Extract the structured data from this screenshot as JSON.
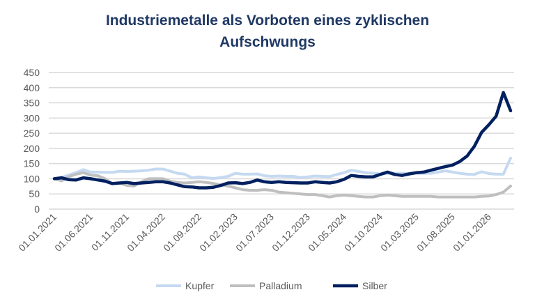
{
  "chart_data": {
    "type": "line",
    "title_line1": "Industriemetalle als Vorboten eines zyklischen",
    "title_line2": "Aufschwungs",
    "xlabel": "",
    "ylabel": "",
    "ylim": [
      0,
      450
    ],
    "yticks": [
      0,
      50,
      100,
      150,
      200,
      250,
      300,
      350,
      400,
      450
    ],
    "grid": true,
    "legend_position": "bottom",
    "x_start": "01.01.2021",
    "x_frequency": "monthly",
    "xtick_labels": [
      "01.01.2021",
      "01.06.2021",
      "01.11.2021",
      "01.04.2022",
      "01.09.2022",
      "01.02.2023",
      "01.07.2023",
      "01.12.2023",
      "01.05.2024",
      "01.10.2024",
      "01.03.2025",
      "01.08.2025",
      "01.01.2026"
    ],
    "series": [
      {
        "name": "Kupfer",
        "color": "#c5d9f1",
        "values": [
          100,
          104,
          112,
          120,
          130,
          122,
          122,
          121,
          121,
          125,
          124,
          125,
          126,
          128,
          132,
          132,
          125,
          118,
          115,
          103,
          106,
          103,
          101,
          104,
          108,
          118,
          115,
          115,
          116,
          110,
          108,
          109,
          108,
          108,
          104,
          106,
          109,
          108,
          107,
          114,
          120,
          128,
          124,
          120,
          118,
          116,
          118,
          118,
          118,
          118,
          118,
          118,
          118,
          122,
          126,
          122,
          118,
          115,
          114,
          123,
          117,
          115,
          115,
          168
        ]
      },
      {
        "name": "Palladium",
        "color": "#bfbfbf",
        "values": [
          100,
          93,
          107,
          115,
          120,
          112,
          110,
          100,
          84,
          86,
          78,
          76,
          90,
          100,
          100,
          100,
          92,
          88,
          86,
          88,
          90,
          88,
          84,
          80,
          76,
          70,
          64,
          62,
          62,
          64,
          62,
          56,
          54,
          52,
          50,
          48,
          48,
          44,
          40,
          44,
          46,
          44,
          42,
          40,
          40,
          44,
          46,
          44,
          42,
          42,
          42,
          42,
          42,
          40,
          40,
          40,
          40,
          40,
          40,
          42,
          43,
          48,
          56,
          76
        ]
      },
      {
        "name": "Silber",
        "color": "#002060",
        "values": [
          100,
          103,
          97,
          96,
          103,
          100,
          96,
          92,
          84,
          86,
          88,
          84,
          86,
          88,
          90,
          90,
          86,
          80,
          74,
          73,
          70,
          70,
          72,
          78,
          86,
          87,
          84,
          88,
          96,
          90,
          88,
          90,
          88,
          87,
          86,
          86,
          90,
          88,
          86,
          90,
          98,
          111,
          108,
          106,
          106,
          114,
          122,
          114,
          111,
          116,
          120,
          122,
          128,
          134,
          140,
          145,
          157,
          175,
          207,
          253,
          278,
          306,
          384,
          324
        ]
      }
    ]
  }
}
